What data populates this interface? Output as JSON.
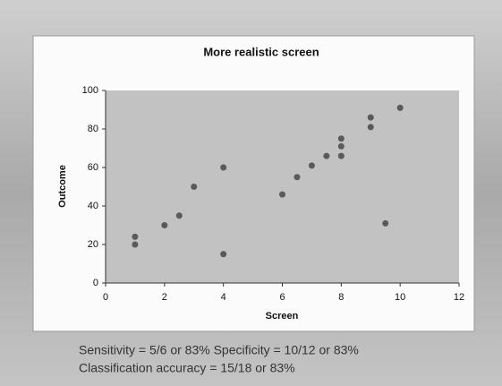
{
  "chart_data": {
    "type": "scatter",
    "title": "More realistic screen",
    "x_label": "Screen",
    "y_label": "Outcome",
    "x": [
      1,
      1,
      2,
      2.5,
      3,
      4,
      4,
      6,
      6.5,
      7,
      7.5,
      8,
      8,
      8,
      9,
      9,
      9.5,
      10
    ],
    "values": [
      20,
      24,
      30,
      35,
      50,
      60,
      15,
      46,
      55,
      61,
      66,
      66,
      71,
      75,
      81,
      86,
      31,
      91
    ],
    "color": "#5a5a5a",
    "xlim": [
      0,
      12
    ],
    "xticks": [
      0,
      2,
      4,
      6,
      8,
      10,
      12
    ],
    "ylim": [
      0,
      100
    ],
    "yticks": [
      0,
      20,
      40,
      60,
      80,
      100
    ],
    "annotations": [
      "Sensitivity = 5/6 or 83%   Specificity = 10/12 or 83%",
      "Classification accuracy = 15/18 or 83%"
    ]
  }
}
